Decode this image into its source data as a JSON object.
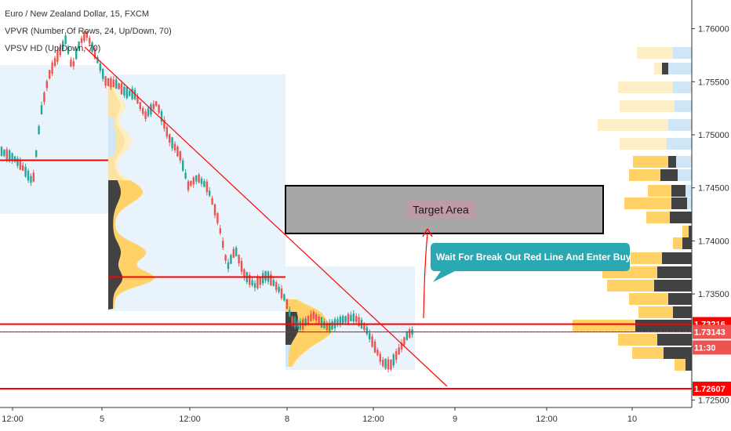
{
  "legend": {
    "symbol": "Euro / New Zealand Dollar, 15, FXCM",
    "vpvr": "VPVR (Number Of Rows, 24, Up/Down, 70)",
    "vpsv": "VPSV HD (Up/Down, 70)"
  },
  "colors": {
    "up": "#26a69a",
    "down": "#ef5350",
    "red_line": "#ff0000",
    "vol_up": "#ffd166",
    "vol_down": "#424242",
    "vol_up_light": "#fdeec6",
    "vol_down_light": "#cfe6f7",
    "box_fill": "#e9f3fb",
    "target_fill": "#a7a7a7"
  },
  "chart_data": {
    "type": "candlestick",
    "y_axis": {
      "range": [
        1.7243,
        1.7627
      ],
      "ticks": [
        "1.76000",
        "1.75500",
        "1.75000",
        "1.74500",
        "1.74000",
        "1.73500",
        "1.73000",
        "1.72500"
      ]
    },
    "x_axis": {
      "ticks": [
        "12:00",
        "5",
        "12:00",
        "8",
        "12:00",
        "9",
        "12:00",
        "10"
      ]
    },
    "price_labels": [
      {
        "text": "1.73216",
        "value": 1.73216
      },
      {
        "text": "1.73143",
        "value": 1.73143
      },
      {
        "text": "11:30",
        "value": 1.7297
      },
      {
        "text": "1.72607",
        "value": 1.72607
      }
    ],
    "horizontal_levels": [
      1.73216,
      1.72607
    ],
    "segment_levels": [
      1.7476,
      1.7366
    ],
    "target_zone": {
      "high": 1.7452,
      "low": 1.7407,
      "label": "Target Area"
    },
    "callout": "Wait For Break Out Red Line And Enter Buy"
  }
}
